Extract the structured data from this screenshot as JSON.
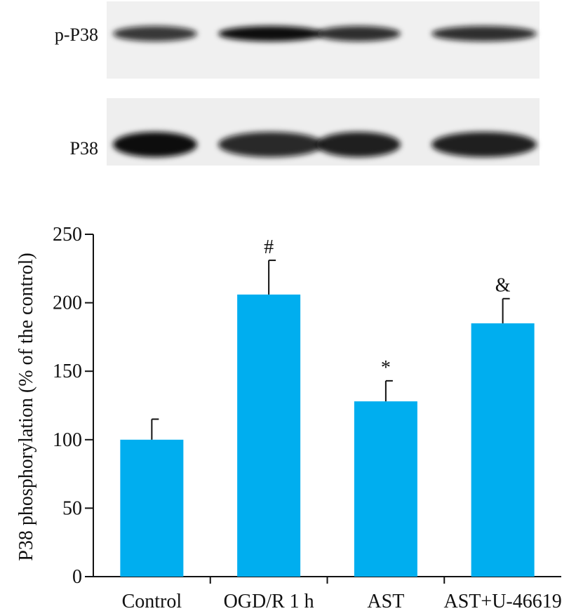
{
  "blot": {
    "rows": [
      {
        "label": "p-P38",
        "intensity": [
          0.82,
          1.0,
          0.86,
          0.86
        ]
      },
      {
        "label": "P38",
        "intensity": [
          1.0,
          0.88,
          0.92,
          0.92
        ]
      }
    ],
    "background": "#f2f2f2",
    "band_color": "#111111"
  },
  "chart_data": {
    "type": "bar",
    "categories": [
      "Control",
      "OGD/R 1 h",
      "AST",
      "AST+U-46619"
    ],
    "values": [
      100,
      206,
      128,
      185
    ],
    "errors": [
      15,
      25,
      15,
      18
    ],
    "annotations": [
      "",
      "#",
      "*",
      "&"
    ],
    "ylabel": "P38 phosphorylation (% of the control)",
    "xlabel": "",
    "ylim": [
      0,
      250
    ],
    "yticks": [
      0,
      50,
      100,
      150,
      200,
      250
    ],
    "bar_color": "#00aeef",
    "grid": false
  }
}
